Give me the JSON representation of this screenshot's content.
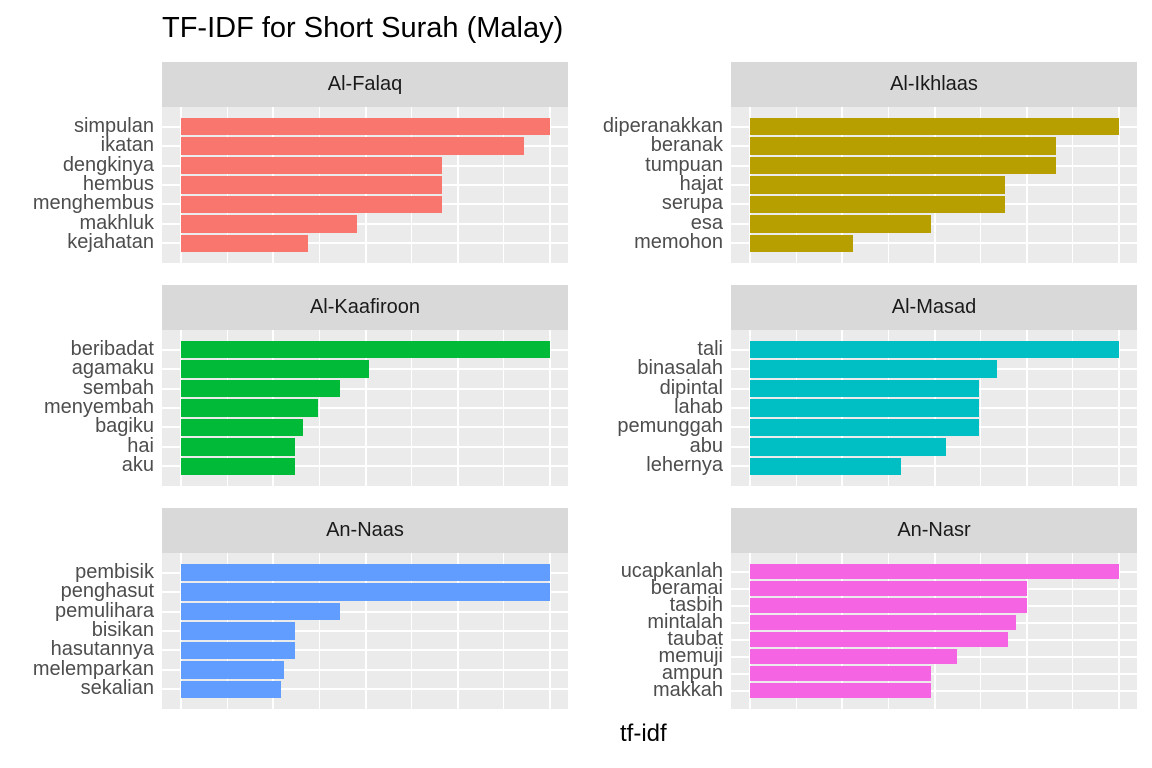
{
  "title": "TF-IDF for Short Surah (Malay)",
  "xlabel": "tf-idf",
  "facets": [
    {
      "name": "Al-Falaq",
      "color": "#F8766D",
      "terms": [
        "simpulan",
        "ikatan",
        "dengkinya",
        "hembus",
        "menghembus",
        "makhluk",
        "kejahatan"
      ],
      "values": [
        1.0,
        0.93,
        0.707,
        0.707,
        0.707,
        0.476,
        0.344
      ]
    },
    {
      "name": "Al-Ikhlaas",
      "color": "#B79F00",
      "terms": [
        "diperanakkan",
        "beranak",
        "tumpuan",
        "hajat",
        "serupa",
        "esa",
        "memohon"
      ],
      "values": [
        1.0,
        0.83,
        0.83,
        0.69,
        0.69,
        0.49,
        0.28
      ]
    },
    {
      "name": "Al-Kaafiroon",
      "color": "#00BA38",
      "terms": [
        "beribadat",
        "agamaku",
        "sembah",
        "menyembah",
        "bagiku",
        "hai",
        "aku"
      ],
      "values": [
        1.0,
        0.51,
        0.43,
        0.37,
        0.33,
        0.31,
        0.31
      ]
    },
    {
      "name": "Al-Masad",
      "color": "#00BFC4",
      "terms": [
        "tali",
        "binasalah",
        "dipintal",
        "lahab",
        "pemunggah",
        "abu",
        "lehernya"
      ],
      "values": [
        1.0,
        0.67,
        0.62,
        0.62,
        0.62,
        0.53,
        0.41
      ]
    },
    {
      "name": "An-Naas",
      "color": "#619CFF",
      "terms": [
        "pembisik",
        "penghasut",
        "pemulihara",
        "bisikan",
        "hasutannya",
        "melemparkan",
        "sekalian"
      ],
      "values": [
        1.0,
        1.0,
        0.43,
        0.31,
        0.31,
        0.28,
        0.27
      ]
    },
    {
      "name": "An-Nasr",
      "color": "#F564E3",
      "terms": [
        "ucapkanlah",
        "beramai",
        "tasbih",
        "mintalah",
        "taubat",
        "memuji",
        "ampun",
        "makkah"
      ],
      "values": [
        1.0,
        0.75,
        0.75,
        0.72,
        0.7,
        0.56,
        0.49,
        0.49
      ]
    }
  ],
  "chart_data": {
    "type": "bar",
    "orientation": "horizontal",
    "title": "TF-IDF for Short Surah (Malay)",
    "xlabel": "tf-idf",
    "ylabel": "",
    "note": "Faceted bar chart; x-axis tick labels not shown, values are relative to the longest bar in each facet (free x scales)",
    "grid": true,
    "legend": "none",
    "facets": [
      {
        "name": "Al-Falaq",
        "categories": [
          "simpulan",
          "ikatan",
          "dengkinya",
          "hembus",
          "menghembus",
          "makhluk",
          "kejahatan"
        ],
        "values": [
          1.0,
          0.93,
          0.707,
          0.707,
          0.707,
          0.476,
          0.344
        ]
      },
      {
        "name": "Al-Ikhlaas",
        "categories": [
          "diperanakkan",
          "beranak",
          "tumpuan",
          "hajat",
          "serupa",
          "esa",
          "memohon"
        ],
        "values": [
          1.0,
          0.83,
          0.83,
          0.69,
          0.69,
          0.49,
          0.28
        ]
      },
      {
        "name": "Al-Kaafiroon",
        "categories": [
          "beribadat",
          "agamaku",
          "sembah",
          "menyembah",
          "bagiku",
          "hai",
          "aku"
        ],
        "values": [
          1.0,
          0.51,
          0.43,
          0.37,
          0.33,
          0.31,
          0.31
        ]
      },
      {
        "name": "Al-Masad",
        "categories": [
          "tali",
          "binasalah",
          "dipintal",
          "lahab",
          "pemunggah",
          "abu",
          "lehernya"
        ],
        "values": [
          1.0,
          0.67,
          0.62,
          0.62,
          0.62,
          0.53,
          0.41
        ]
      },
      {
        "name": "An-Naas",
        "categories": [
          "pembisik",
          "penghasut",
          "pemulihara",
          "bisikan",
          "hasutannya",
          "melemparkan",
          "sekalian"
        ],
        "values": [
          1.0,
          1.0,
          0.43,
          0.31,
          0.31,
          0.28,
          0.27
        ]
      },
      {
        "name": "An-Nasr",
        "categories": [
          "ucapkanlah",
          "beramai",
          "tasbih",
          "mintalah",
          "taubat",
          "memuji",
          "ampun",
          "makkah"
        ],
        "values": [
          1.0,
          0.75,
          0.75,
          0.72,
          0.7,
          0.56,
          0.49,
          0.49
        ]
      }
    ]
  }
}
